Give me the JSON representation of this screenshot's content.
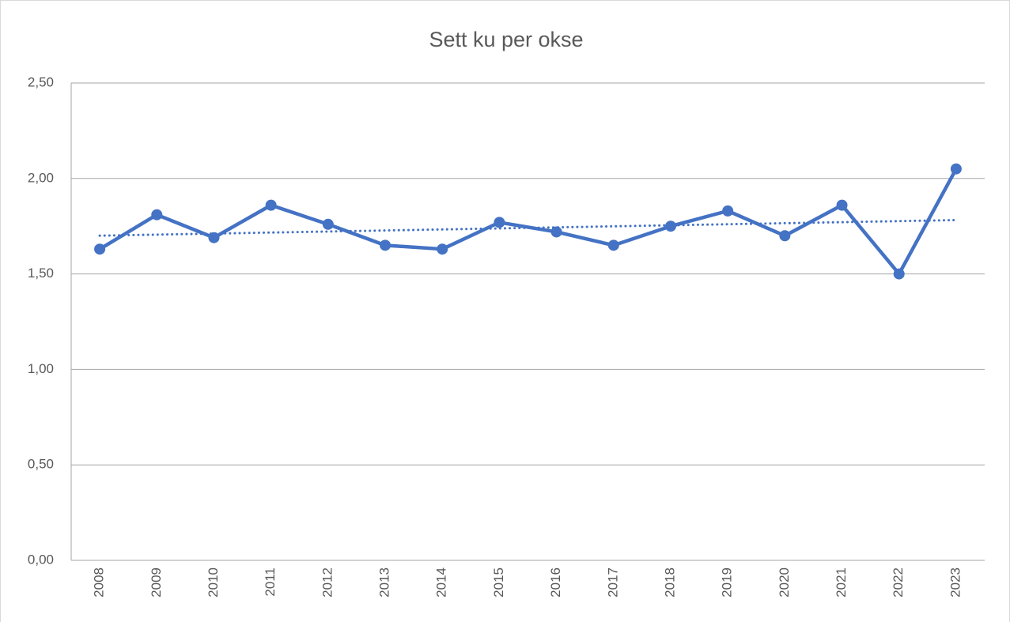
{
  "chart_data": {
    "type": "line",
    "title": "Sett ku per okse",
    "categories": [
      "2008",
      "2009",
      "2010",
      "2011",
      "2012",
      "2013",
      "2014",
      "2015",
      "2016",
      "2017",
      "2018",
      "2019",
      "2020",
      "2021",
      "2022",
      "2023"
    ],
    "series": [
      {
        "name": "Sett ku per okse",
        "color": "#4472c4",
        "values": [
          1.63,
          1.81,
          1.69,
          1.86,
          1.76,
          1.65,
          1.63,
          1.77,
          1.72,
          1.65,
          1.75,
          1.83,
          1.7,
          1.86,
          1.5,
          2.05
        ]
      }
    ],
    "ylim": [
      0,
      2.5
    ],
    "yticks": [
      {
        "value": 0,
        "label": "0,00"
      },
      {
        "value": 0.5,
        "label": "0,50"
      },
      {
        "value": 1,
        "label": "1,00"
      },
      {
        "value": 1.5,
        "label": "1,50"
      },
      {
        "value": 2,
        "label": "2,00"
      },
      {
        "value": 2.5,
        "label": "2,50"
      }
    ],
    "grid": true,
    "trendline": "linear"
  }
}
